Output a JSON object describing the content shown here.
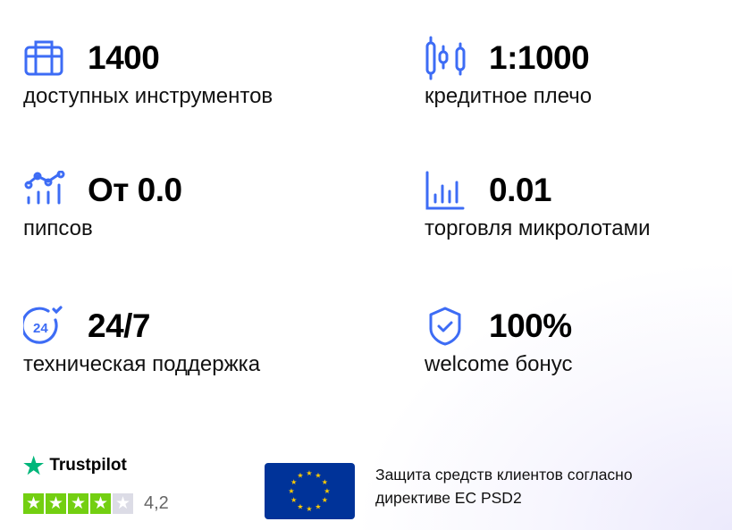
{
  "accent_color": "#3d6cf5",
  "stats": [
    {
      "icon": "briefcase-icon",
      "value": "1400",
      "label": "доступных инструментов"
    },
    {
      "icon": "candlestick-icon",
      "value": "1:1000",
      "label": "кредитное плечо"
    },
    {
      "icon": "line-chart-icon",
      "value": "От 0.0",
      "label": "пипсов"
    },
    {
      "icon": "bar-chart-icon",
      "value": "0.01",
      "label": "торговля микролотами"
    },
    {
      "icon": "support-24-icon",
      "value": "24/7",
      "label": "техническая поддержка"
    },
    {
      "icon": "shield-check-icon",
      "value": "100%",
      "label": "welcome бонус"
    }
  ],
  "trustpilot": {
    "name": "Trustpilot",
    "rating": "4,2",
    "stars_filled": 4,
    "stars_total": 5,
    "star_color": "#73cf11",
    "logo_color": "#00b67a"
  },
  "eu": {
    "text_line1": "Защита средств клиентов согласно",
    "text_line2": "директиве ЕС PSD2"
  }
}
